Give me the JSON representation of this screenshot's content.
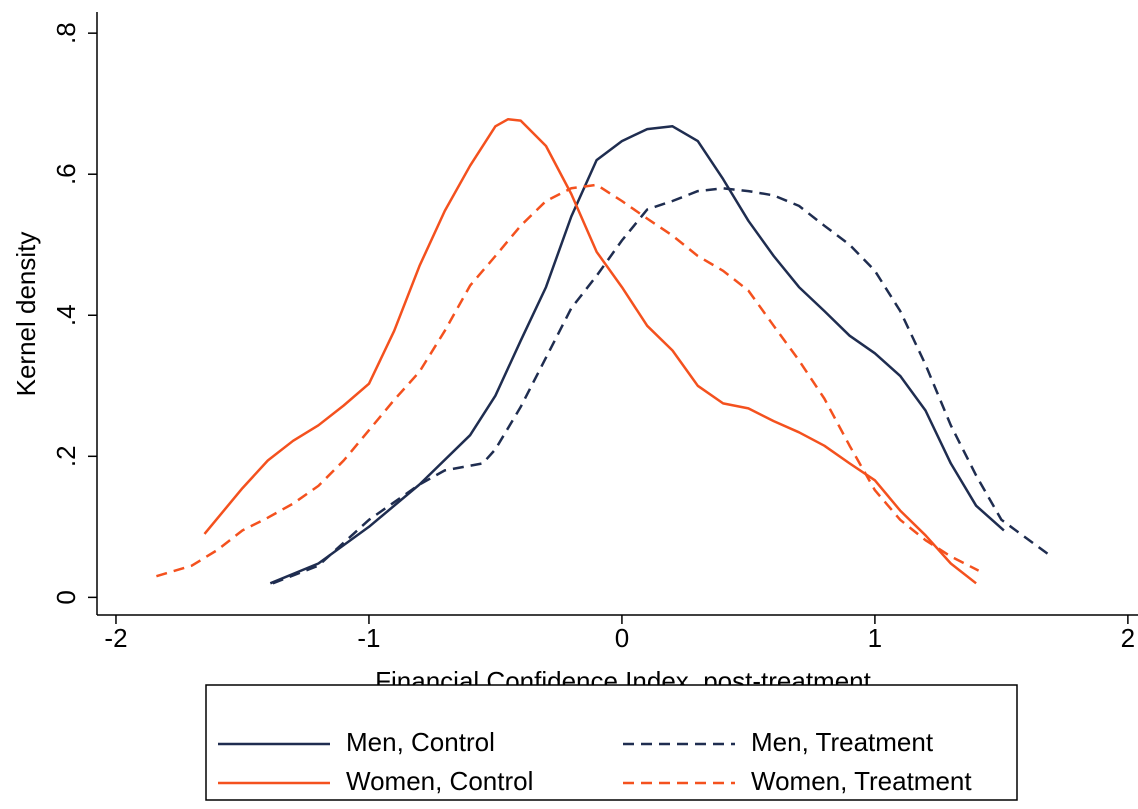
{
  "chart_data": {
    "type": "line",
    "x_label": "Financial Confidence Index, post-treatment",
    "y_label": "Kernel density",
    "xlim": [
      -2.075,
      2.04
    ],
    "ylim": [
      -0.025,
      0.83
    ],
    "xticks": [
      -2,
      -1,
      0,
      1,
      2
    ],
    "yticks": [
      0,
      {
        "value": 0.2,
        "label": ".2"
      },
      {
        "value": 0.4,
        "label": ".4"
      },
      {
        "value": 0.6,
        "label": ".6"
      },
      {
        "value": 0.8,
        "label": ".8"
      }
    ],
    "legend": "bottom",
    "series": [
      {
        "name": "Men, Control",
        "color": "#1f2d50",
        "dashed": false,
        "x": [
          -1.39,
          -1.2,
          -1.0,
          -0.8,
          -0.6,
          -0.5,
          -0.4,
          -0.3,
          -0.2,
          -0.1,
          0.0,
          0.1,
          0.2,
          0.3,
          0.4,
          0.5,
          0.6,
          0.7,
          0.8,
          0.9,
          1.0,
          1.1,
          1.2,
          1.3,
          1.4,
          1.51
        ],
        "values": [
          0.02,
          0.048,
          0.1,
          0.16,
          0.23,
          0.286,
          0.364,
          0.44,
          0.54,
          0.62,
          0.647,
          0.664,
          0.668,
          0.647,
          0.593,
          0.534,
          0.484,
          0.44,
          0.406,
          0.371,
          0.346,
          0.314,
          0.265,
          0.19,
          0.13,
          0.095
        ]
      },
      {
        "name": "Men, Treatment",
        "color": "#1f2d50",
        "dashed": true,
        "x": [
          -1.38,
          -1.2,
          -1.0,
          -0.8,
          -0.7,
          -0.55,
          -0.5,
          -0.4,
          -0.3,
          -0.2,
          -0.1,
          0.0,
          0.1,
          0.2,
          0.3,
          0.4,
          0.5,
          0.6,
          0.7,
          0.8,
          0.9,
          1.0,
          1.1,
          1.2,
          1.3,
          1.4,
          1.5,
          1.69
        ],
        "values": [
          0.02,
          0.045,
          0.11,
          0.16,
          0.18,
          0.19,
          0.21,
          0.27,
          0.34,
          0.41,
          0.456,
          0.506,
          0.55,
          0.562,
          0.576,
          0.58,
          0.576,
          0.57,
          0.555,
          0.527,
          0.5,
          0.463,
          0.406,
          0.33,
          0.244,
          0.173,
          0.11,
          0.06
        ]
      },
      {
        "name": "Women, Control",
        "color": "#f4511e",
        "dashed": false,
        "x": [
          -1.65,
          -1.5,
          -1.4,
          -1.3,
          -1.2,
          -1.1,
          -1.0,
          -0.9,
          -0.8,
          -0.7,
          -0.6,
          -0.5,
          -0.45,
          -0.4,
          -0.3,
          -0.2,
          -0.1,
          0.0,
          0.1,
          0.2,
          0.3,
          0.4,
          0.5,
          0.6,
          0.7,
          0.8,
          0.9,
          1.0,
          1.1,
          1.2,
          1.3,
          1.4
        ],
        "values": [
          0.09,
          0.155,
          0.194,
          0.222,
          0.244,
          0.272,
          0.303,
          0.378,
          0.47,
          0.548,
          0.612,
          0.668,
          0.678,
          0.676,
          0.64,
          0.572,
          0.49,
          0.44,
          0.385,
          0.35,
          0.3,
          0.275,
          0.268,
          0.25,
          0.234,
          0.215,
          0.19,
          0.166,
          0.123,
          0.088,
          0.048,
          0.02
        ]
      },
      {
        "name": "Women, Treatment",
        "color": "#f4511e",
        "dashed": true,
        "x": [
          -1.84,
          -1.7,
          -1.6,
          -1.5,
          -1.4,
          -1.3,
          -1.2,
          -1.1,
          -1.0,
          -0.9,
          -0.8,
          -0.7,
          -0.6,
          -0.5,
          -0.4,
          -0.3,
          -0.2,
          -0.1,
          0.0,
          0.1,
          0.2,
          0.3,
          0.4,
          0.5,
          0.6,
          0.7,
          0.8,
          0.9,
          1.0,
          1.1,
          1.2,
          1.3,
          1.41
        ],
        "values": [
          0.03,
          0.045,
          0.067,
          0.095,
          0.113,
          0.133,
          0.158,
          0.194,
          0.237,
          0.28,
          0.32,
          0.378,
          0.442,
          0.484,
          0.527,
          0.562,
          0.58,
          0.585,
          0.562,
          0.537,
          0.513,
          0.484,
          0.463,
          0.435,
          0.385,
          0.336,
          0.282,
          0.215,
          0.152,
          0.11,
          0.081,
          0.058,
          0.038
        ]
      }
    ]
  }
}
